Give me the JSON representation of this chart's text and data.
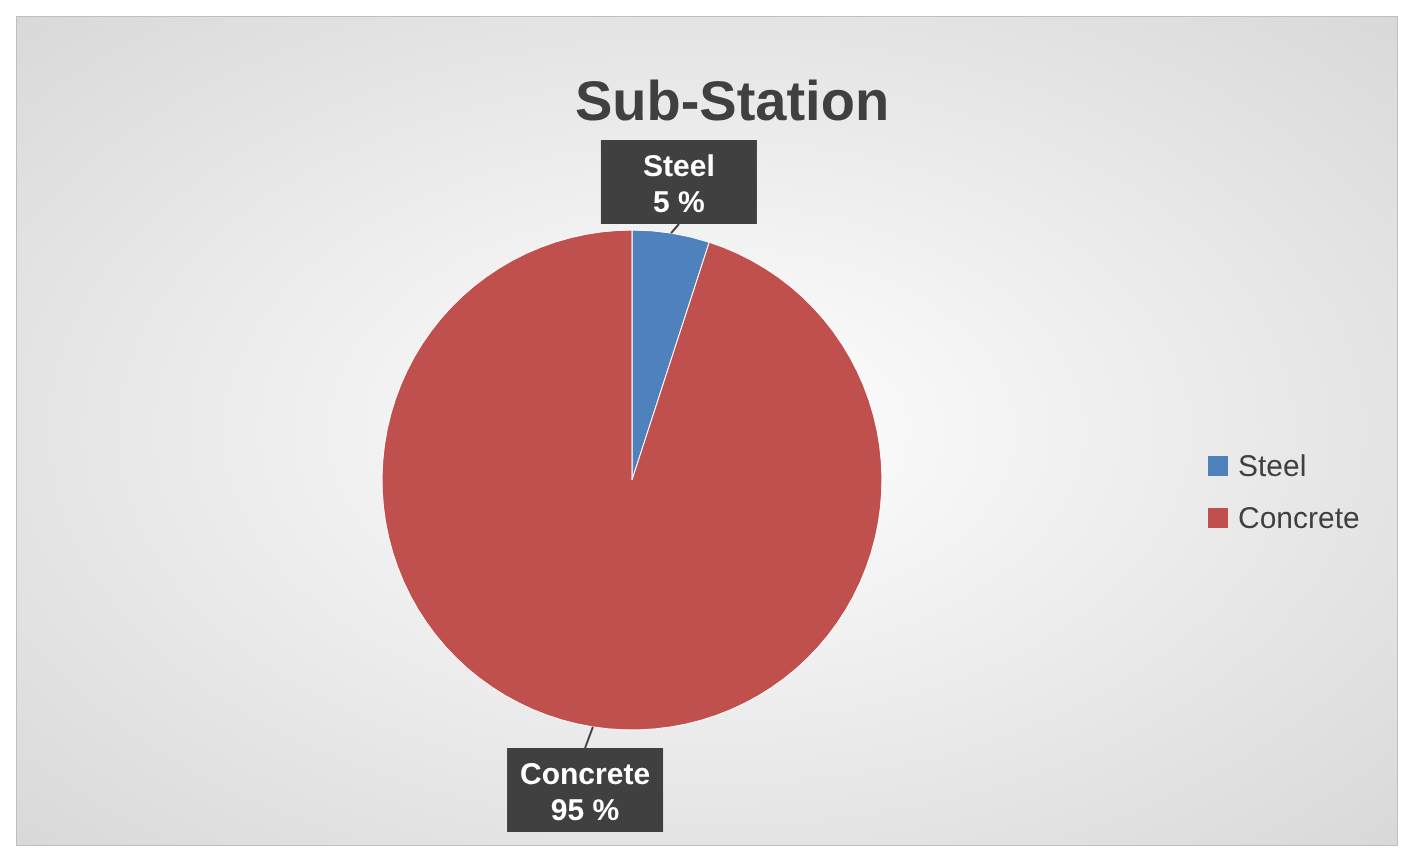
{
  "chart_data": {
    "type": "pie",
    "title": "Sub-Station",
    "categories": [
      "Steel",
      "Concrete"
    ],
    "values": [
      5,
      95
    ],
    "colors": [
      "#4f81bd",
      "#c0504d"
    ],
    "value_labels": [
      "5 %",
      "95 %"
    ],
    "legend": "right"
  }
}
